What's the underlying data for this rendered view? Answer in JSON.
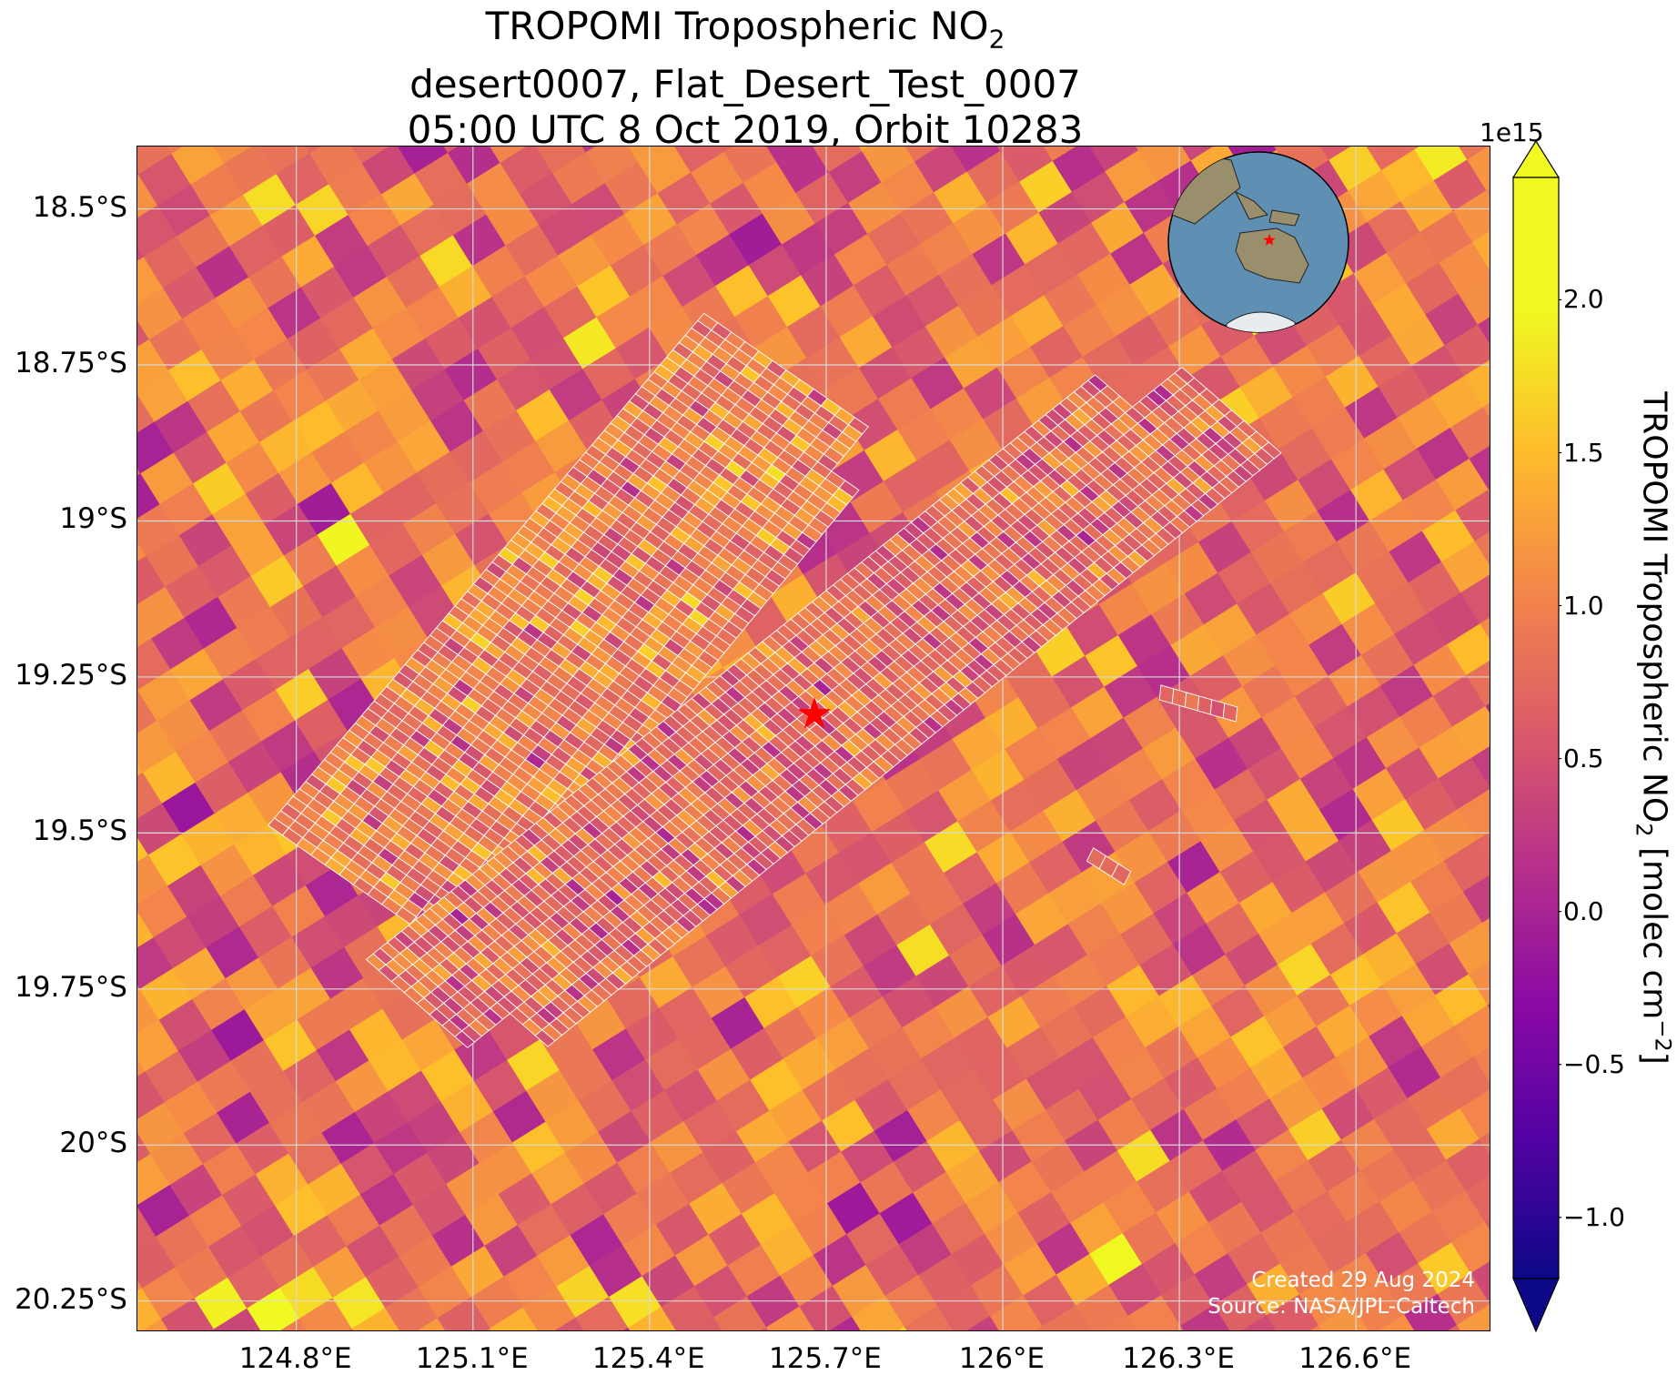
{
  "title": {
    "line1_main": "TROPOMI Tropospheric NO",
    "line1_sub": "2",
    "line2": "desert0007, Flat_Desert_Test_0007",
    "line3": "05:00 UTC 8 Oct 2019, Orbit 10283"
  },
  "map": {
    "lon_range": [
      124.53,
      126.83
    ],
    "lat_range": [
      -20.3,
      -18.4
    ],
    "lon_ticks": [
      124.8,
      125.1,
      125.4,
      125.7,
      126.0,
      126.3,
      126.6
    ],
    "lat_ticks": [
      -18.5,
      -18.75,
      -19.0,
      -19.25,
      -19.5,
      -19.75,
      -20.0,
      -20.25
    ],
    "lon_labels": [
      "124.8°E",
      "125.1°E",
      "125.4°E",
      "125.7°E",
      "126°E",
      "126.3°E",
      "126.6°E"
    ],
    "lat_labels": [
      "18.5°S",
      "18.75°S",
      "19°S",
      "19.25°S",
      "19.5°S",
      "19.75°S",
      "20°S",
      "20.25°S"
    ],
    "site_marker": {
      "lon": 125.68,
      "lat": -19.31,
      "color": "#ff0000",
      "shape": "star"
    },
    "overlay_color": "#ffffff",
    "credit_line1": "Created 29 Aug 2024",
    "credit_line2": "Source: NASA/JPL-Caltech"
  },
  "colorbar": {
    "colormap": "plasma",
    "range": [
      -1.2,
      2.4
    ],
    "extend": "both",
    "ticks": [
      -1.0,
      -0.5,
      0.0,
      0.5,
      1.0,
      1.5,
      2.0
    ],
    "tick_labels": [
      "−1.0",
      "−0.5",
      "0.0",
      "0.5",
      "1.0",
      "1.5",
      "2.0"
    ],
    "exponent": "1e15",
    "label_main": "TROPOMI Tropospheric NO",
    "label_sub": "2",
    "label_units": " [molec cm",
    "label_sup": "−2",
    "label_close": "]"
  },
  "inset_globe": {
    "ocean_color": "#5f8fb3",
    "land_color": "#9a8f6c",
    "marker_color": "#ff0000"
  }
}
